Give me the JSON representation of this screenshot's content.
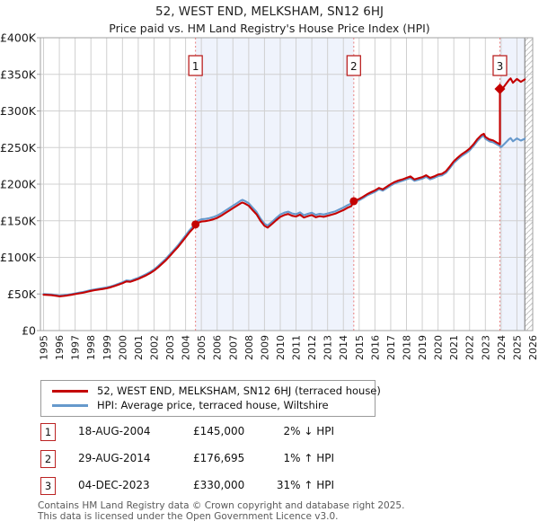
{
  "title": "52, WEST END, MELKSHAM, SN12 6HJ",
  "subtitle": "Price paid vs. HM Land Registry's House Price Index (HPI)",
  "chart_data": {
    "type": "line",
    "title": "52, WEST END, MELKSHAM, SN12 6HJ",
    "subtitle": "Price paid vs. HM Land Registry's House Price Index (HPI)",
    "xlabel": "",
    "ylabel": "",
    "x_domain": [
      1994.8,
      2026.0
    ],
    "y_domain": [
      0,
      400
    ],
    "grid": true,
    "legend_position": "bottom",
    "units": "GBP thousands",
    "x_ticks": [
      1995,
      1996,
      1997,
      1998,
      1999,
      2000,
      2001,
      2002,
      2003,
      2004,
      2005,
      2006,
      2007,
      2008,
      2009,
      2010,
      2011,
      2012,
      2013,
      2014,
      2015,
      2016,
      2017,
      2018,
      2019,
      2020,
      2021,
      2022,
      2023,
      2024,
      2025,
      2026
    ],
    "y_ticks": [
      {
        "v": 0,
        "label": "£0"
      },
      {
        "v": 50,
        "label": "£50K"
      },
      {
        "v": 100,
        "label": "£100K"
      },
      {
        "v": 150,
        "label": "£150K"
      },
      {
        "v": 200,
        "label": "£200K"
      },
      {
        "v": 250,
        "label": "£250K"
      },
      {
        "v": 300,
        "label": "£300K"
      },
      {
        "v": 350,
        "label": "£350K"
      },
      {
        "v": 400,
        "label": "£400K"
      }
    ],
    "colors": {
      "price_line": "#c40000",
      "hpi_line": "#6699cc",
      "band": "#eff3fc",
      "grid": "#d0d0d0",
      "frame": "#a0a0a0",
      "sale_dash": "#e87e7e",
      "accent": "#bb2222",
      "hatch": "#c4c4c4",
      "hatch_edge": "#888888"
    },
    "bands": [
      {
        "from": 2004.63,
        "to": 2014.66
      },
      {
        "from": 2023.92,
        "to": 2025.5
      }
    ],
    "future_hatch": {
      "from": 2025.5,
      "to": 2026.0
    },
    "sale_lines": [
      {
        "n": "1",
        "year": 2004.63
      },
      {
        "n": "2",
        "year": 2014.66
      },
      {
        "n": "3",
        "year": 2023.92
      }
    ],
    "markers": [
      {
        "year": 2004.63,
        "value": 145,
        "shape": "circle"
      },
      {
        "year": 2014.66,
        "value": 176.7,
        "shape": "circle"
      },
      {
        "year": 2023.92,
        "value": 330,
        "shape": "diamond"
      }
    ],
    "series": [
      {
        "name": "HPI: Average price, terraced house, Wiltshire",
        "color": "#6699cc",
        "points": [
          [
            1995,
            50
          ],
          [
            1995.25,
            49.7
          ],
          [
            1995.5,
            49.3
          ],
          [
            1995.75,
            48.6
          ],
          [
            1996,
            47.8
          ],
          [
            1996.25,
            48.3
          ],
          [
            1996.5,
            49
          ],
          [
            1996.75,
            49.8
          ],
          [
            1997,
            50.8
          ],
          [
            1997.25,
            51.8
          ],
          [
            1997.5,
            52.8
          ],
          [
            1997.75,
            54
          ],
          [
            1998,
            55.3
          ],
          [
            1998.25,
            56.3
          ],
          [
            1998.5,
            57.2
          ],
          [
            1998.75,
            58
          ],
          [
            1999,
            59
          ],
          [
            1999.25,
            60.3
          ],
          [
            1999.5,
            62
          ],
          [
            1999.75,
            64
          ],
          [
            2000,
            66
          ],
          [
            2000.25,
            68.5
          ],
          [
            2000.5,
            68
          ],
          [
            2000.75,
            70
          ],
          [
            2001,
            72
          ],
          [
            2001.25,
            74.5
          ],
          [
            2001.5,
            77
          ],
          [
            2001.75,
            80
          ],
          [
            2002,
            83.5
          ],
          [
            2002.25,
            88
          ],
          [
            2002.5,
            93
          ],
          [
            2002.75,
            98
          ],
          [
            2003,
            104
          ],
          [
            2003.25,
            110
          ],
          [
            2003.5,
            116
          ],
          [
            2003.75,
            123
          ],
          [
            2004,
            130
          ],
          [
            2004.25,
            137
          ],
          [
            2004.5,
            143
          ],
          [
            2004.63,
            148
          ],
          [
            2004.75,
            150
          ],
          [
            2005,
            152
          ],
          [
            2005.25,
            152.5
          ],
          [
            2005.5,
            153.5
          ],
          [
            2005.75,
            155
          ],
          [
            2006,
            157
          ],
          [
            2006.25,
            160
          ],
          [
            2006.5,
            163.5
          ],
          [
            2006.75,
            167
          ],
          [
            2007,
            170.5
          ],
          [
            2007.25,
            174
          ],
          [
            2007.5,
            177.5
          ],
          [
            2007.6,
            178.5
          ],
          [
            2007.75,
            177
          ],
          [
            2008,
            174
          ],
          [
            2008.25,
            168
          ],
          [
            2008.5,
            162
          ],
          [
            2008.75,
            153
          ],
          [
            2009,
            146
          ],
          [
            2009.2,
            143.5
          ],
          [
            2009.5,
            149
          ],
          [
            2009.75,
            154
          ],
          [
            2010,
            158.5
          ],
          [
            2010.25,
            161
          ],
          [
            2010.5,
            162.5
          ],
          [
            2010.75,
            160
          ],
          [
            2011,
            159
          ],
          [
            2011.25,
            161.5
          ],
          [
            2011.5,
            157.5
          ],
          [
            2011.75,
            159.5
          ],
          [
            2012,
            161
          ],
          [
            2012.25,
            158
          ],
          [
            2012.5,
            159.5
          ],
          [
            2012.75,
            158.5
          ],
          [
            2013,
            160
          ],
          [
            2013.25,
            161.5
          ],
          [
            2013.5,
            163
          ],
          [
            2013.75,
            165.5
          ],
          [
            2014,
            168
          ],
          [
            2014.25,
            171
          ],
          [
            2014.5,
            173.5
          ],
          [
            2014.66,
            175
          ],
          [
            2015,
            178
          ],
          [
            2015.25,
            181
          ],
          [
            2015.5,
            184.5
          ],
          [
            2015.75,
            187
          ],
          [
            2016,
            189.5
          ],
          [
            2016.25,
            193
          ],
          [
            2016.5,
            191
          ],
          [
            2016.75,
            194.5
          ],
          [
            2017,
            198
          ],
          [
            2017.25,
            201
          ],
          [
            2017.5,
            203
          ],
          [
            2017.75,
            204.5
          ],
          [
            2018,
            206.5
          ],
          [
            2018.25,
            208.5
          ],
          [
            2018.5,
            204.5
          ],
          [
            2018.75,
            206
          ],
          [
            2019,
            207.5
          ],
          [
            2019.25,
            210
          ],
          [
            2019.5,
            206.5
          ],
          [
            2019.75,
            208.5
          ],
          [
            2020,
            211
          ],
          [
            2020.25,
            212
          ],
          [
            2020.5,
            215.5
          ],
          [
            2020.75,
            222
          ],
          [
            2021,
            229
          ],
          [
            2021.25,
            234
          ],
          [
            2021.5,
            238.5
          ],
          [
            2021.75,
            242
          ],
          [
            2022,
            246
          ],
          [
            2022.25,
            252
          ],
          [
            2022.5,
            259
          ],
          [
            2022.75,
            264.5
          ],
          [
            2022.9,
            266
          ],
          [
            2023,
            262
          ],
          [
            2023.25,
            258.5
          ],
          [
            2023.5,
            257
          ],
          [
            2023.75,
            254
          ],
          [
            2023.92,
            252
          ],
          [
            2024,
            250.5
          ],
          [
            2024.25,
            256
          ],
          [
            2024.5,
            261.5
          ],
          [
            2024.6,
            263
          ],
          [
            2024.75,
            258.5
          ],
          [
            2025,
            262.5
          ],
          [
            2025.25,
            259.5
          ],
          [
            2025.5,
            262
          ]
        ]
      },
      {
        "name": "52, WEST END, MELKSHAM, SN12 6HJ (terraced house)",
        "color": "#c40000",
        "points": [
          [
            1995,
            49
          ],
          [
            1995.25,
            48.7
          ],
          [
            1995.5,
            48.3
          ],
          [
            1995.75,
            47.6
          ],
          [
            1996,
            46.8
          ],
          [
            1996.25,
            47.3
          ],
          [
            1996.5,
            48
          ],
          [
            1996.75,
            48.8
          ],
          [
            1997,
            49.8
          ],
          [
            1997.25,
            50.8
          ],
          [
            1997.5,
            51.7
          ],
          [
            1997.75,
            52.9
          ],
          [
            1998,
            54.2
          ],
          [
            1998.25,
            55.2
          ],
          [
            1998.5,
            56.1
          ],
          [
            1998.75,
            56.8
          ],
          [
            1999,
            57.8
          ],
          [
            1999.25,
            59.1
          ],
          [
            1999.5,
            60.8
          ],
          [
            1999.75,
            62.7
          ],
          [
            2000,
            64.7
          ],
          [
            2000.25,
            67.1
          ],
          [
            2000.5,
            66.6
          ],
          [
            2000.75,
            68.6
          ],
          [
            2001,
            70.6
          ],
          [
            2001.25,
            73
          ],
          [
            2001.5,
            75.5
          ],
          [
            2001.75,
            78.4
          ],
          [
            2002,
            81.8
          ],
          [
            2002.25,
            86.2
          ],
          [
            2002.5,
            91.1
          ],
          [
            2002.75,
            96
          ],
          [
            2003,
            101.9
          ],
          [
            2003.25,
            107.8
          ],
          [
            2003.5,
            113.7
          ],
          [
            2003.75,
            120.5
          ],
          [
            2004,
            127.4
          ],
          [
            2004.25,
            134.3
          ],
          [
            2004.5,
            140.1
          ],
          [
            2004.63,
            145
          ],
          [
            2004.75,
            147
          ],
          [
            2005,
            149
          ],
          [
            2005.25,
            149.5
          ],
          [
            2005.5,
            150.4
          ],
          [
            2005.75,
            151.9
          ],
          [
            2006,
            153.9
          ],
          [
            2006.25,
            156.8
          ],
          [
            2006.5,
            160.2
          ],
          [
            2006.75,
            163.7
          ],
          [
            2007,
            167.1
          ],
          [
            2007.25,
            170.5
          ],
          [
            2007.5,
            174
          ],
          [
            2007.6,
            175
          ],
          [
            2007.75,
            173.5
          ],
          [
            2008,
            170.5
          ],
          [
            2008.25,
            164.6
          ],
          [
            2008.5,
            158.8
          ],
          [
            2008.75,
            150
          ],
          [
            2009,
            143.1
          ],
          [
            2009.2,
            140.6
          ],
          [
            2009.5,
            146
          ],
          [
            2009.75,
            150.9
          ],
          [
            2010,
            155.3
          ],
          [
            2010.25,
            157.8
          ],
          [
            2010.5,
            159.3
          ],
          [
            2010.75,
            156.8
          ],
          [
            2011,
            155.8
          ],
          [
            2011.25,
            158.3
          ],
          [
            2011.5,
            154.4
          ],
          [
            2011.75,
            156.3
          ],
          [
            2012,
            157.8
          ],
          [
            2012.25,
            154.8
          ],
          [
            2012.5,
            156.3
          ],
          [
            2012.75,
            155.3
          ],
          [
            2013,
            156.8
          ],
          [
            2013.25,
            158.3
          ],
          [
            2013.5,
            159.7
          ],
          [
            2013.75,
            162.2
          ],
          [
            2014,
            164.6
          ],
          [
            2014.25,
            167.6
          ],
          [
            2014.5,
            170
          ],
          [
            2014.66,
            176.7
          ],
          [
            2015,
            179.8
          ],
          [
            2015.25,
            182.8
          ],
          [
            2015.5,
            186.3
          ],
          [
            2015.75,
            188.9
          ],
          [
            2016,
            191.4
          ],
          [
            2016.25,
            194.9
          ],
          [
            2016.5,
            192.9
          ],
          [
            2016.75,
            196.4
          ],
          [
            2017,
            200
          ],
          [
            2017.25,
            203
          ],
          [
            2017.5,
            205
          ],
          [
            2017.75,
            206.5
          ],
          [
            2018,
            208.6
          ],
          [
            2018.25,
            210.6
          ],
          [
            2018.5,
            206.5
          ],
          [
            2018.75,
            208.1
          ],
          [
            2019,
            209.6
          ],
          [
            2019.25,
            212.1
          ],
          [
            2019.5,
            208.6
          ],
          [
            2019.75,
            210.6
          ],
          [
            2020,
            213.1
          ],
          [
            2020.25,
            214.1
          ],
          [
            2020.5,
            217.7
          ],
          [
            2020.75,
            224.2
          ],
          [
            2021,
            231.3
          ],
          [
            2021.25,
            236.3
          ],
          [
            2021.5,
            240.9
          ],
          [
            2021.75,
            244.4
          ],
          [
            2022,
            248.5
          ],
          [
            2022.25,
            254.5
          ],
          [
            2022.5,
            261.6
          ],
          [
            2022.75,
            267.1
          ],
          [
            2022.9,
            268.7
          ],
          [
            2023,
            264.6
          ],
          [
            2023.25,
            261.1
          ],
          [
            2023.5,
            259.6
          ],
          [
            2023.75,
            256.5
          ],
          [
            2023.92,
            254.5
          ],
          [
            2023.92,
            330
          ],
          [
            2024,
            328
          ],
          [
            2024.25,
            335.2
          ],
          [
            2024.5,
            342.4
          ],
          [
            2024.6,
            344.4
          ],
          [
            2024.75,
            338.5
          ],
          [
            2025,
            343.7
          ],
          [
            2025.25,
            339.8
          ],
          [
            2025.5,
            343.1
          ]
        ]
      }
    ]
  },
  "legend": [
    {
      "label": "52, WEST END, MELKSHAM, SN12 6HJ (terraced house)",
      "color": "#c40000"
    },
    {
      "label": "HPI: Average price, terraced house, Wiltshire",
      "color": "#6699cc"
    }
  ],
  "sales": [
    {
      "num": "1",
      "date": "18-AUG-2004",
      "price": "£145,000",
      "vs_hpi": "2% ↓ HPI"
    },
    {
      "num": "2",
      "date": "29-AUG-2014",
      "price": "£176,695",
      "vs_hpi": "1% ↑ HPI"
    },
    {
      "num": "3",
      "date": "04-DEC-2023",
      "price": "£330,000",
      "vs_hpi": "31% ↑ HPI"
    }
  ],
  "footer": {
    "line1": "Contains HM Land Registry data © Crown copyright and database right 2025.",
    "line2": "This data is licensed under the Open Government Licence v3.0."
  }
}
